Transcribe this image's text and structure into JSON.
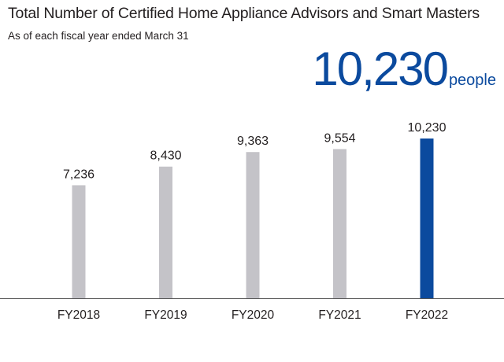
{
  "header": {
    "title": "Total Number of Certified Home Appliance Advisors and Smart Masters",
    "subtitle": "As of each fiscal year ended March 31"
  },
  "highlight": {
    "value": "10,230",
    "unit": "people"
  },
  "colors": {
    "bar_default": "#c4c3c8",
    "bar_highlight": "#0b4a9e",
    "axis": "#555555",
    "headline": "#0b4a9e"
  },
  "chart_data": {
    "type": "bar",
    "title": "Total Number of Certified Home Appliance Advisors and Smart Masters",
    "subtitle": "As of each fiscal year ended March 31",
    "categories": [
      "FY2018",
      "FY2019",
      "FY2020",
      "FY2021",
      "FY2022"
    ],
    "values": [
      7236,
      8430,
      9363,
      9554,
      10230
    ],
    "value_labels": [
      "7,236",
      "8,430",
      "9,363",
      "9,554",
      "10,230"
    ],
    "highlight_index": 4,
    "ylim": [
      0,
      10230
    ],
    "xlabel": "",
    "ylabel": "",
    "grid": false,
    "legend": "none"
  }
}
